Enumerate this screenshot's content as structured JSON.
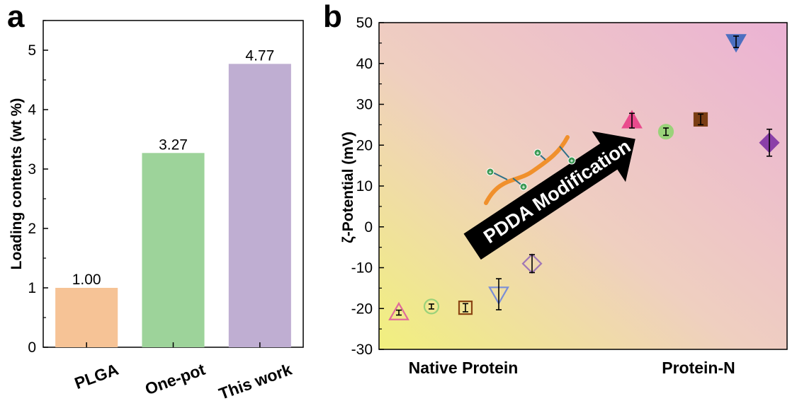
{
  "panels": {
    "a": "a",
    "b": "b"
  },
  "chart_data": [
    {
      "type": "bar",
      "categories": [
        "PLGA",
        "One-pot",
        "This work"
      ],
      "values": [
        1.0,
        3.27,
        4.77
      ],
      "value_labels": [
        "1.00",
        "3.27",
        "4.77"
      ],
      "colors": [
        "#f6c396",
        "#9dd39a",
        "#bfaed2"
      ],
      "title": "",
      "xlabel": "",
      "ylabel": "Loading contents (wt %)",
      "ylim": [
        0,
        5.5
      ],
      "yticks": [
        "0",
        "1",
        "2",
        "3",
        "4",
        "5"
      ]
    },
    {
      "type": "scatter",
      "xlabel_groups": [
        "Native Protein",
        "Protein-N"
      ],
      "ylabel": "ζ-Potential (mV)",
      "ylim": [
        -30,
        50
      ],
      "yticks": [
        "-30",
        "-20",
        "-10",
        "0",
        "10",
        "20",
        "30",
        "40",
        "50"
      ],
      "annotation": "PDDA Modification",
      "points": [
        {
          "group": "Native Protein",
          "marker": "triangle-up",
          "filled": false,
          "color": "#e06a9a",
          "y": -21,
          "err": 0.6
        },
        {
          "group": "Native Protein",
          "marker": "circle",
          "filled": false,
          "color": "#9ad27a",
          "y": -19.5,
          "err": 0.6
        },
        {
          "group": "Native Protein",
          "marker": "square",
          "filled": false,
          "color": "#8b4513",
          "y": -19.8,
          "err": 1.0
        },
        {
          "group": "Native Protein",
          "marker": "triangle-down",
          "filled": false,
          "color": "#7b8ed6",
          "y": -16.5,
          "err": 3.8
        },
        {
          "group": "Native Protein",
          "marker": "diamond",
          "filled": false,
          "color": "#a077b5",
          "y": -9,
          "err": 2.2
        },
        {
          "group": "Protein-N",
          "marker": "triangle-up",
          "filled": true,
          "color": "#e94b8d",
          "y": 26,
          "err": 1.8
        },
        {
          "group": "Protein-N",
          "marker": "circle",
          "filled": true,
          "color": "#9ad27a",
          "y": 23.3,
          "err": 0.9
        },
        {
          "group": "Protein-N",
          "marker": "square",
          "filled": true,
          "color": "#7a3d14",
          "y": 26.3,
          "err": 1.3
        },
        {
          "group": "Protein-N",
          "marker": "triangle-down",
          "filled": true,
          "color": "#4c6fc0",
          "y": 45.3,
          "err": 1.4
        },
        {
          "group": "Protein-N",
          "marker": "diamond",
          "filled": true,
          "color": "#8a3fa8",
          "y": 20.6,
          "err": 3.3
        }
      ]
    }
  ]
}
